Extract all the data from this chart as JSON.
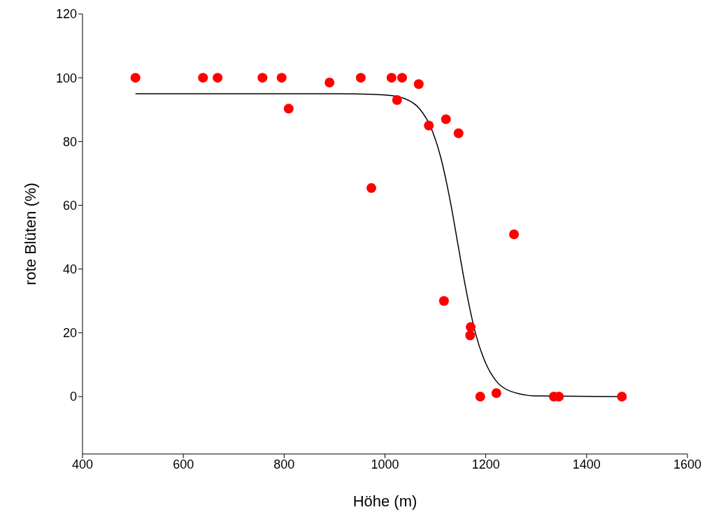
{
  "chart_data": {
    "type": "scatter",
    "xlabel": "Höhe (m)",
    "ylabel": "rote Blüten (%)",
    "xlim": [
      400,
      1600
    ],
    "xticks": [
      400,
      600,
      800,
      1000,
      1200,
      1400,
      1600
    ],
    "ylim": [
      -18,
      120
    ],
    "yticks": [
      0,
      20,
      40,
      60,
      80,
      100,
      120
    ],
    "grid": false,
    "legend": false,
    "series": [
      {
        "color": "#ff0000",
        "marker": "circle",
        "x": [
          505,
          639,
          668,
          757,
          795,
          809,
          890,
          952,
          973,
          1013,
          1034,
          1024,
          1067,
          1087,
          1121,
          1146,
          1117,
          1170,
          1169,
          1189,
          1221,
          1256,
          1335,
          1345,
          1470
        ],
        "values": [
          100,
          100,
          100,
          100,
          100,
          90.3,
          98.5,
          100,
          65.4,
          100,
          100,
          93,
          98,
          85,
          87,
          82.6,
          30,
          21.8,
          19.2,
          0,
          1.1,
          50.9,
          0,
          0,
          0
        ]
      },
      {
        "type": "line",
        "color": "#000000",
        "line_style": "solid",
        "marker": "none",
        "x": [
          505,
          900,
          1000,
          1040,
          1070,
          1090,
          1110,
          1130,
          1145,
          1160,
          1180,
          1200,
          1220,
          1250,
          1300,
          1470
        ],
        "values": [
          95,
          95,
          94.6,
          93.4,
          90,
          84.8,
          75.4,
          60.9,
          47.5,
          34.2,
          19.6,
          10.4,
          5,
          1.6,
          0.2,
          0
        ]
      }
    ]
  }
}
